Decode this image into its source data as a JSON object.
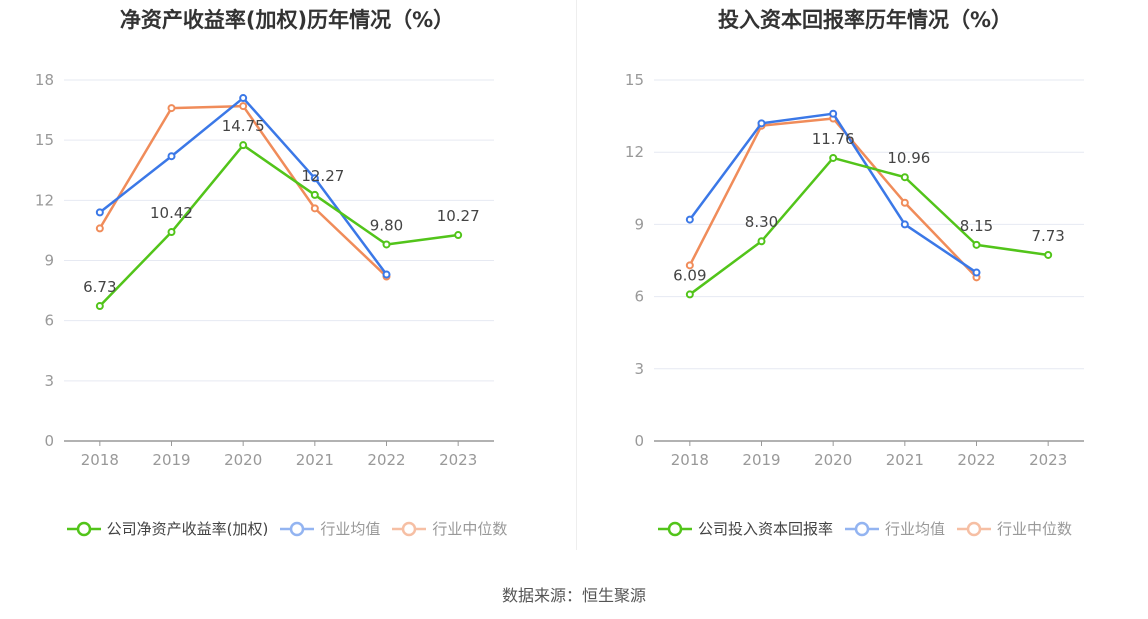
{
  "source_text": "数据来源：恒生聚源",
  "chart_data": [
    {
      "type": "line",
      "title": "净资产收益率(加权)历年情况（%）",
      "categories": [
        "2018",
        "2019",
        "2020",
        "2021",
        "2022",
        "2023"
      ],
      "ylim": [
        0,
        18
      ],
      "yticks": [
        0,
        3,
        6,
        9,
        12,
        15,
        18
      ],
      "grid": true,
      "legend_position": "bottom",
      "series": [
        {
          "name": "公司净资产收益率(加权)",
          "color": "#52c41a",
          "values": [
            6.73,
            10.42,
            14.75,
            12.27,
            9.8,
            10.27
          ],
          "labels": [
            "6.73",
            "10.42",
            "14.75",
            "12.27",
            "9.80",
            "10.27"
          ]
        },
        {
          "name": "行业均值",
          "color": "#3b78e7",
          "values": [
            11.4,
            14.2,
            17.1,
            13.1,
            8.3,
            null
          ]
        },
        {
          "name": "行业中位数",
          "color": "#f08c5a",
          "values": [
            10.6,
            16.6,
            16.7,
            11.6,
            8.2,
            null
          ]
        }
      ]
    },
    {
      "type": "line",
      "title": "投入资本回报率历年情况（%）",
      "categories": [
        "2018",
        "2019",
        "2020",
        "2021",
        "2022",
        "2023"
      ],
      "ylim": [
        0,
        15
      ],
      "yticks": [
        0,
        3,
        6,
        9,
        12,
        15
      ],
      "grid": true,
      "legend_position": "bottom",
      "series": [
        {
          "name": "公司投入资本回报率",
          "color": "#52c41a",
          "values": [
            6.09,
            8.3,
            11.76,
            10.96,
            8.15,
            7.73
          ],
          "labels": [
            "6.09",
            "8.30",
            "11.76",
            "10.96",
            "8.15",
            "7.73"
          ]
        },
        {
          "name": "行业均值",
          "color": "#3b78e7",
          "values": [
            9.2,
            13.2,
            13.6,
            9.0,
            7.0,
            null
          ]
        },
        {
          "name": "行业中位数",
          "color": "#f08c5a",
          "values": [
            7.3,
            13.1,
            13.4,
            9.9,
            6.8,
            null
          ]
        }
      ]
    }
  ]
}
